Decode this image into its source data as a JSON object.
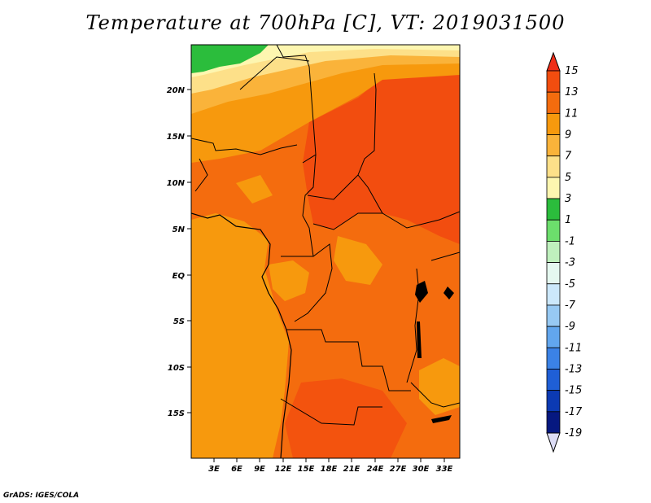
{
  "title": "Temperature at 700hPa [C], VT: 2019031500",
  "credit": "GrADS: IGES/COLA",
  "lat_labels": [
    "20N",
    "15N",
    "10N",
    "5N",
    "EQ",
    "5S",
    "10S",
    "15S"
  ],
  "lon_labels": [
    "3E",
    "6E",
    "9E",
    "12E",
    "15E",
    "18E",
    "21E",
    "24E",
    "27E",
    "30E",
    "33E"
  ],
  "colorbar": {
    "labels": [
      "15",
      "13",
      "11",
      "9",
      "7",
      "5",
      "3",
      "1",
      "-1",
      "-3",
      "-5",
      "-7",
      "-9",
      "-11",
      "-13",
      "-15",
      "-17",
      "-19"
    ],
    "colors": [
      "#ef2d18",
      "#f24d0f",
      "#f46c0e",
      "#f7990d",
      "#fab33a",
      "#fde089",
      "#fdf6b0",
      "#2bbd3c",
      "#6cde6c",
      "#bff0bd",
      "#e5f8f0",
      "#cce8fb",
      "#97c9f3",
      "#62a6ee",
      "#3b82e6",
      "#1f5fd6",
      "#0c3ab3",
      "#061880",
      "#dcdcf5"
    ]
  },
  "map": {
    "field_colors": {
      "warm_13": "#f24d0f",
      "warm_11": "#f46c0e",
      "warm_9": "#f7990d",
      "warm_7": "#fab33a",
      "warm_5": "#fde089",
      "warm_3": "#fdf6b0",
      "cool_1": "#2bbd3c"
    }
  }
}
